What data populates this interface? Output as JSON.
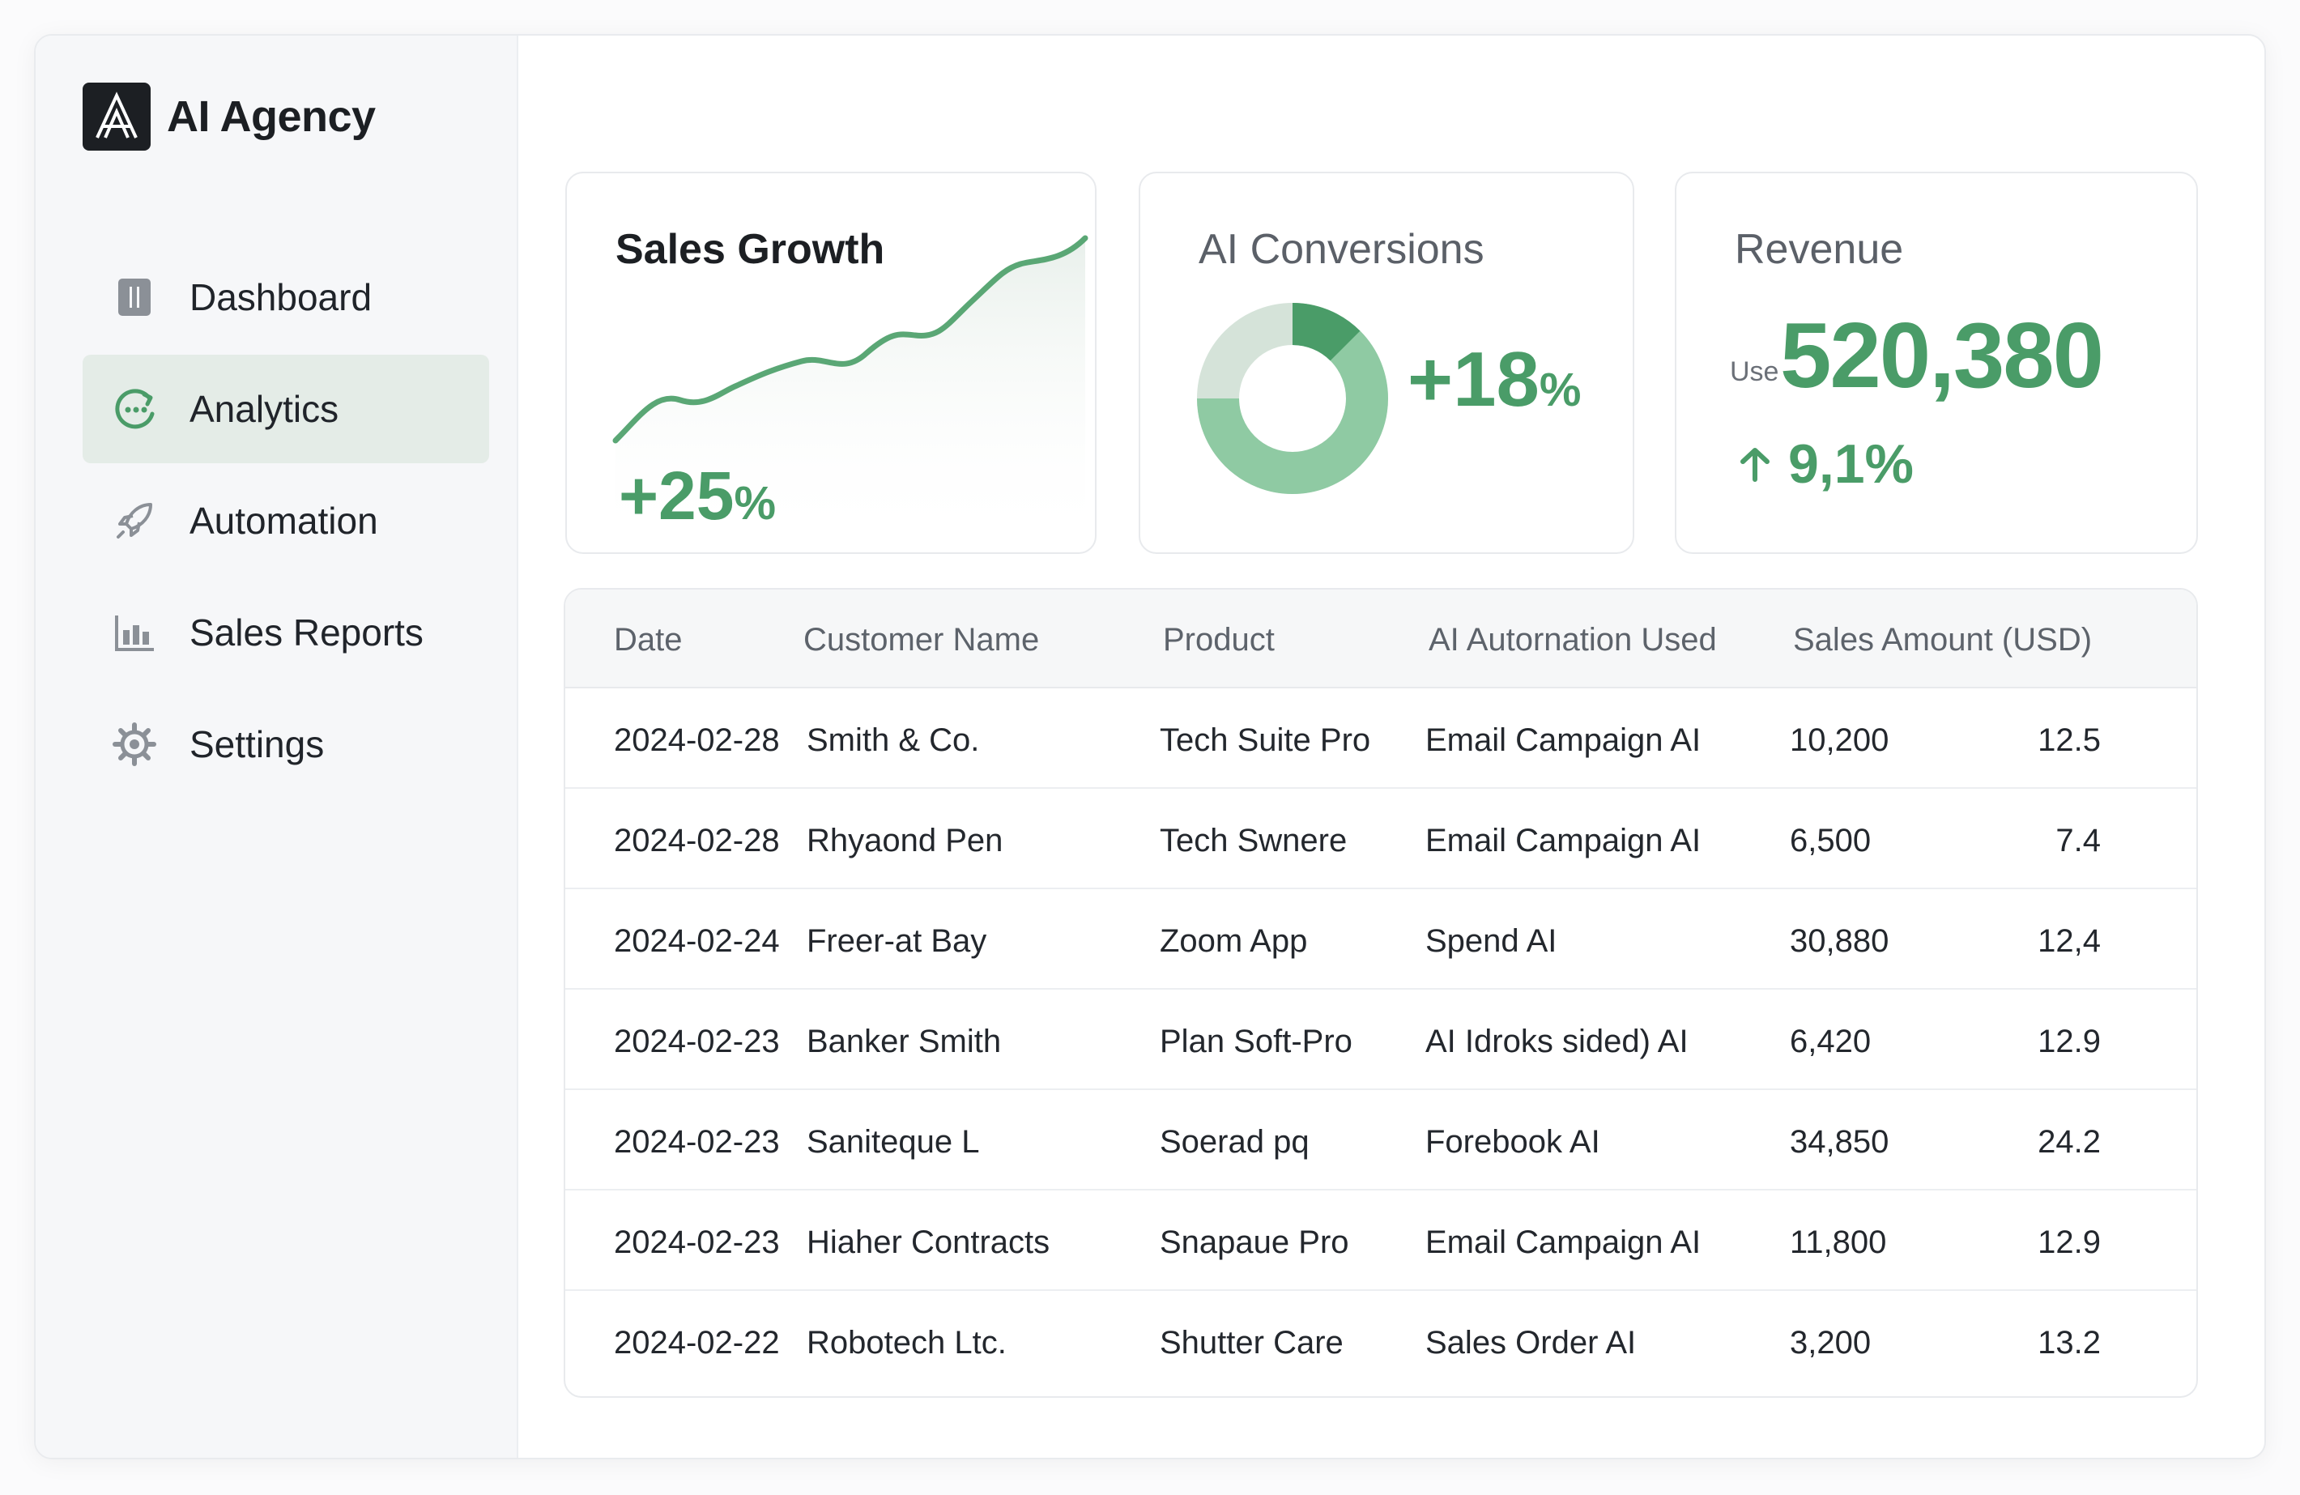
{
  "brand": {
    "name": "AI Agency",
    "logo_icon": "a-logo-icon"
  },
  "sidebar": {
    "items": [
      {
        "label": "Dashboard",
        "icon": "dashboard-icon",
        "active": false
      },
      {
        "label": "Analytics",
        "icon": "analytics-icon",
        "active": true
      },
      {
        "label": "Automation",
        "icon": "rocket-icon",
        "active": false
      },
      {
        "label": "Sales Reports",
        "icon": "bar-chart-icon",
        "active": false
      },
      {
        "label": "Settings",
        "icon": "gear-icon",
        "active": false
      }
    ]
  },
  "cards": {
    "sales_growth": {
      "title": "Sales Growth",
      "value": "+25",
      "unit": "%"
    },
    "ai_conversions": {
      "title": "AI Conversions",
      "value": "+18",
      "unit": "%"
    },
    "revenue": {
      "title": "Revenue",
      "prefix": "Use",
      "value": "520,380",
      "change": "9,1%"
    }
  },
  "colors": {
    "accent": "#4a9c68",
    "accent_light": "#8fcaa3",
    "accent_pale": "#d5e3d9",
    "active_bg": "#e4ece7"
  },
  "table": {
    "headers": [
      "Date",
      "Customer Name",
      "Product",
      "AI Autornation Used",
      "Sales Amount (USD)"
    ],
    "rows": [
      {
        "date": "2024-02-28",
        "customer": "Smith & Co.",
        "product": "Tech Suite Pro",
        "ai": "Email Campaign AI",
        "amount": "10,200",
        "extra": "12.5"
      },
      {
        "date": "2024-02-28",
        "customer": "Rhyaond Pen",
        "product": "Tech Swnere",
        "ai": "Email Campaign AI",
        "amount": "6,500",
        "extra": "7.4"
      },
      {
        "date": "2024-02-24",
        "customer": "Freer-at Bay",
        "product": "Zoom App",
        "ai": "Spend AI",
        "amount": "30,880",
        "extra": "12,4"
      },
      {
        "date": "2024-02-23",
        "customer": "Banker Smith",
        "product": "Plan Soft-Pro",
        "ai": "AI Idroks sided) AI",
        "amount": "6,420",
        "extra": "12.9"
      },
      {
        "date": "2024-02-23",
        "customer": "Saniteque  L",
        "product": "Soerad pq",
        "ai": "Forebook AI",
        "amount": "34,850",
        "extra": "24.2"
      },
      {
        "date": "2024-02-23",
        "customer": "Hiaher Contracts",
        "product": "Snapaue Pro",
        "ai": "Email Campaign AI",
        "amount": "11,800",
        "extra": "12.9"
      },
      {
        "date": "2024-02-22",
        "customer": "Robotech Ltc.",
        "product": "Shutter Care",
        "ai": "Sales Order AI",
        "amount": "3,200",
        "extra": "13.2"
      }
    ]
  }
}
